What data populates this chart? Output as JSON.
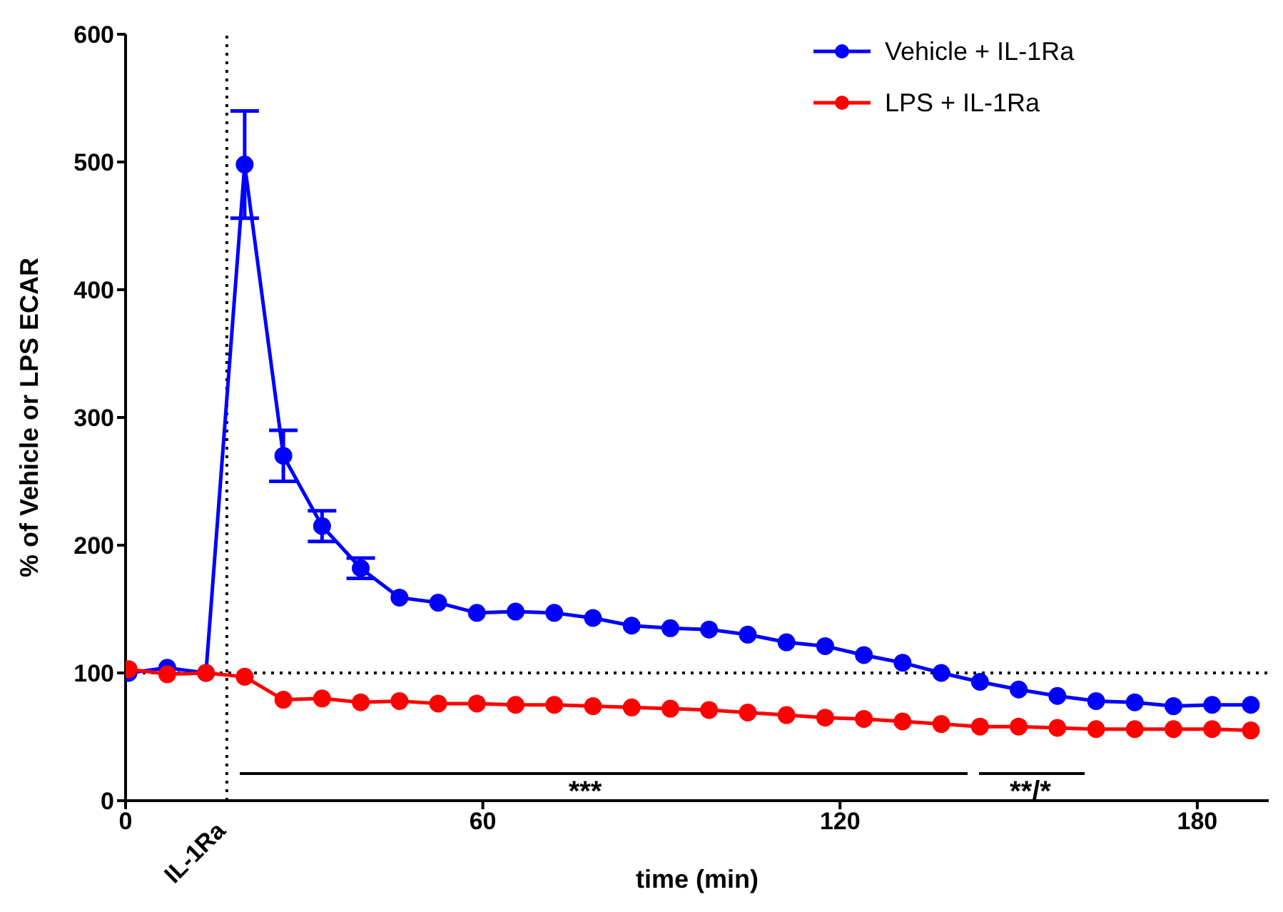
{
  "chart_data": {
    "type": "line",
    "xlabel": "time (min)",
    "ylabel": "% of Vehicle or LPS ECAR",
    "x": [
      0.5,
      7,
      13.5,
      20,
      26.5,
      33,
      39.5,
      46,
      52.5,
      59,
      65.5,
      72,
      78.5,
      85,
      91.5,
      98,
      104.5,
      111,
      117.5,
      124,
      130.5,
      137,
      143.5,
      150,
      156.5,
      163,
      169.5,
      176,
      182.5,
      189
    ],
    "series": [
      {
        "name": "Vehicle + IL-1Ra",
        "color": "#0000ff",
        "values": [
          100,
          104,
          100,
          498,
          270,
          215,
          182,
          159,
          155,
          147,
          148,
          147,
          143,
          137,
          135,
          134,
          130,
          124,
          121,
          114,
          108,
          100,
          93,
          87,
          82,
          78,
          77,
          74,
          75,
          75
        ],
        "errors": [
          null,
          null,
          null,
          42,
          20,
          12,
          8,
          null,
          null,
          null,
          null,
          null,
          null,
          null,
          null,
          null,
          null,
          null,
          null,
          null,
          null,
          null,
          null,
          null,
          null,
          null,
          null,
          null,
          null,
          null
        ]
      },
      {
        "name": "LPS + IL-1Ra",
        "color": "#ff0000",
        "values": [
          103,
          99,
          100,
          97,
          79,
          80,
          77,
          78,
          76,
          76,
          75,
          75,
          74,
          73,
          72,
          71,
          69,
          67,
          65,
          64,
          62,
          60,
          58,
          58,
          57,
          56,
          56,
          56,
          56,
          55
        ]
      }
    ],
    "xlim": [
      0,
      192
    ],
    "xticks": [
      0,
      60,
      120,
      180
    ],
    "ylim": [
      0,
      600
    ],
    "yticks": [
      0,
      100,
      200,
      300,
      400,
      500,
      600
    ],
    "ref_lines": [
      {
        "axis": "x",
        "value": 17,
        "label": "IL-1Ra",
        "line_style": "dotted"
      },
      {
        "axis": "y",
        "value": 100,
        "line_style": "dotted"
      }
    ],
    "annotations": [
      "***",
      "**/*"
    ],
    "legend": "top right",
    "marker": "circle",
    "line_style": "solid",
    "grid": false
  }
}
